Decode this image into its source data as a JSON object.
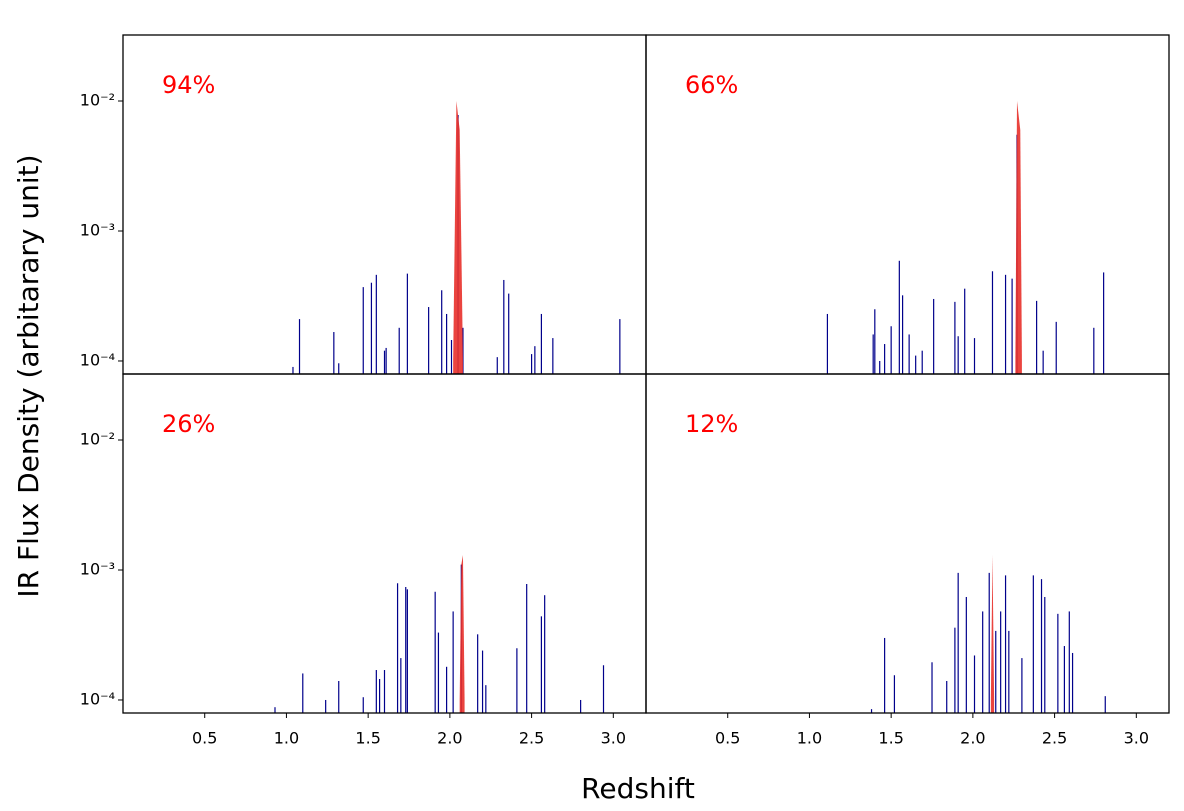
{
  "figure": {
    "xlabel": "Redshift",
    "ylabel": "IR Flux Density (arbitarary unit)"
  },
  "chart_data": [
    {
      "type": "spike",
      "annotation": "94%",
      "annotation_color": "#ff0000",
      "yscale": "log",
      "xlim": [
        0,
        3.2
      ],
      "ylim": [
        7.94e-05,
        0.0322
      ],
      "yticks": [
        {
          "value": 0.0001,
          "label": "10⁻⁴"
        },
        {
          "value": 0.001,
          "label": "10⁻³"
        },
        {
          "value": 0.01,
          "label": "10⁻²"
        }
      ],
      "spikes": {
        "color": "#00008b",
        "x": [
          1.04,
          1.08,
          1.29,
          1.32,
          1.47,
          1.52,
          1.55,
          1.6,
          1.61,
          1.69,
          1.74,
          1.87,
          1.95,
          1.98,
          2.01,
          2.05,
          2.08,
          2.29,
          2.33,
          2.36,
          2.5,
          2.52,
          2.56,
          2.63,
          3.04
        ],
        "values": [
          9e-05,
          0.00021,
          0.000167,
          9.6e-05,
          0.00037,
          0.0004,
          0.00046,
          0.00012,
          0.000126,
          0.00018,
          0.00047,
          0.00026,
          0.00035,
          0.00023,
          0.000145,
          0.0078,
          0.00018,
          0.000107,
          0.00042,
          0.00033,
          0.000113,
          0.00013,
          0.00023,
          0.00015,
          0.00021
        ]
      },
      "peak": {
        "color": "#e8302a",
        "x": [
          2.02,
          2.04,
          2.06,
          2.08
        ],
        "values": [
          0.0001,
          0.01,
          0.006,
          0.0001
        ]
      }
    },
    {
      "type": "spike",
      "annotation": "66%",
      "annotation_color": "#ff0000",
      "yscale": "log",
      "xlim": [
        0,
        3.2
      ],
      "ylim": [
        7.94e-05,
        0.0322
      ],
      "spikes": {
        "color": "#00008b",
        "x": [
          1.11,
          1.39,
          1.4,
          1.43,
          1.46,
          1.5,
          1.55,
          1.57,
          1.61,
          1.65,
          1.69,
          1.76,
          1.89,
          1.91,
          1.95,
          2.01,
          2.12,
          2.2,
          2.24,
          2.27,
          2.39,
          2.43,
          2.51,
          2.74,
          2.8
        ],
        "values": [
          0.00023,
          0.00016,
          0.00025,
          0.0001,
          0.000135,
          0.000185,
          0.00059,
          0.00032,
          0.00016,
          0.00011,
          0.00012,
          0.0003,
          0.000285,
          0.000155,
          0.00036,
          0.00015,
          0.00049,
          0.00046,
          0.00043,
          0.0055,
          0.00029,
          0.00012,
          0.0002,
          0.00018,
          0.00048
        ]
      },
      "peak": {
        "color": "#e8302a",
        "x": [
          2.26,
          2.27,
          2.29,
          2.3
        ],
        "values": [
          0.0001,
          0.01,
          0.006,
          0.0001
        ]
      }
    },
    {
      "type": "spike",
      "annotation": "26%",
      "annotation_color": "#ff0000",
      "yscale": "log",
      "xlim": [
        0,
        3.2
      ],
      "ylim": [
        7.94e-05,
        0.0322
      ],
      "xticks": [
        0.5,
        {
          "value": 1,
          "label": "1.0"
        },
        1.5,
        {
          "value": 2,
          "label": "2.0"
        },
        2.5,
        {
          "value": 3,
          "label": "3.0"
        }
      ],
      "yticks": [
        {
          "value": 0.0001,
          "label": "10⁻⁴"
        },
        {
          "value": 0.001,
          "label": "10⁻³"
        },
        {
          "value": 0.01,
          "label": "10⁻²"
        }
      ],
      "spikes": {
        "color": "#00008b",
        "x": [
          0.93,
          1.1,
          1.24,
          1.32,
          1.47,
          1.55,
          1.57,
          1.6,
          1.68,
          1.7,
          1.73,
          1.74,
          1.91,
          1.93,
          1.98,
          2.02,
          2.07,
          2.17,
          2.2,
          2.22,
          2.41,
          2.47,
          2.56,
          2.58,
          2.8,
          2.94
        ],
        "values": [
          8.8e-05,
          0.00016,
          0.0001,
          0.00014,
          0.000105,
          0.00017,
          0.000145,
          0.00017,
          0.00079,
          0.00021,
          0.00074,
          0.00071,
          0.00068,
          0.00033,
          0.00018,
          0.00048,
          0.0011,
          0.00032,
          0.00024,
          0.00013,
          0.00025,
          0.00078,
          0.00044,
          0.00064,
          0.0001,
          0.000185
        ]
      },
      "peak": {
        "color": "#e8302a",
        "x": [
          2.06,
          2.07,
          2.08,
          2.09
        ],
        "values": [
          0.0001,
          0.0011,
          0.0013,
          0.0001
        ]
      }
    },
    {
      "type": "spike",
      "annotation": "12%",
      "annotation_color": "#ff0000",
      "yscale": "log",
      "xlim": [
        0,
        3.2
      ],
      "ylim": [
        7.94e-05,
        0.0322
      ],
      "xticks": [
        0.5,
        {
          "value": 1,
          "label": "1.0"
        },
        1.5,
        {
          "value": 2,
          "label": "2.0"
        },
        2.5,
        {
          "value": 3,
          "label": "3.0"
        }
      ],
      "spikes": {
        "color": "#00008b",
        "x": [
          1.38,
          1.46,
          1.52,
          1.75,
          1.84,
          1.89,
          1.91,
          1.96,
          2.01,
          2.06,
          2.1,
          2.14,
          2.17,
          2.2,
          2.22,
          2.3,
          2.37,
          2.42,
          2.44,
          2.52,
          2.56,
          2.59,
          2.61,
          2.81
        ],
        "values": [
          8.5e-05,
          0.0003,
          0.000155,
          0.000195,
          0.00014,
          0.00036,
          0.00095,
          0.00062,
          0.00022,
          0.00048,
          0.00095,
          0.00034,
          0.00048,
          0.00091,
          0.00034,
          0.00021,
          0.00091,
          0.00085,
          0.00062,
          0.00046,
          0.00026,
          0.00048,
          0.00023,
          0.000107
        ]
      },
      "peak": {
        "color": "#e8302a",
        "x": [
          2.11,
          2.12,
          2.13
        ],
        "values": [
          0.0001,
          0.0013,
          0.0001
        ]
      }
    }
  ]
}
